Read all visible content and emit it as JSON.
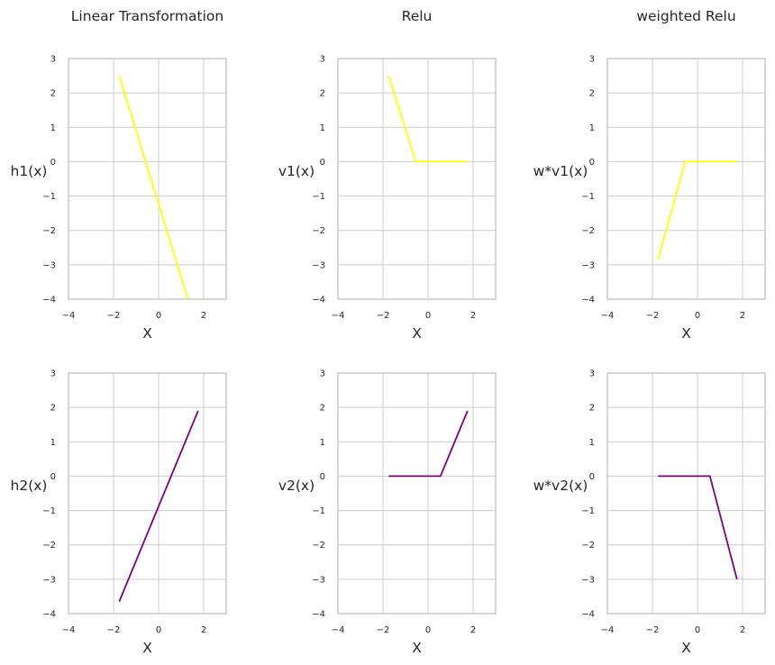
{
  "chart_data": [
    {
      "type": "line",
      "title": "Linear Transformation",
      "xlabel": "X",
      "ylabel": "h1(x)",
      "xlim": [
        -4,
        3
      ],
      "ylim": [
        -4,
        3
      ],
      "xticks": [
        "−4",
        "−2",
        "0",
        "2"
      ],
      "yticks": [
        "−4",
        "−3",
        "−2",
        "−1",
        "0",
        "1",
        "2",
        "3"
      ],
      "grid": true,
      "series": [
        {
          "color": "#ffff00",
          "x": [
            -1.75,
            1.3
          ],
          "y": [
            2.5,
            -4.0
          ]
        }
      ]
    },
    {
      "type": "line",
      "title": "Relu",
      "xlabel": "X",
      "ylabel": "v1(x)",
      "xlim": [
        -4,
        3
      ],
      "ylim": [
        -4,
        3
      ],
      "xticks": [
        "−4",
        "−2",
        "0",
        "2"
      ],
      "yticks": [
        "−4",
        "−3",
        "−2",
        "−1",
        "0",
        "1",
        "2",
        "3"
      ],
      "grid": true,
      "series": [
        {
          "color": "#ffff00",
          "x": [
            -1.75,
            -0.55,
            1.75
          ],
          "y": [
            2.5,
            0,
            0
          ]
        }
      ]
    },
    {
      "type": "line",
      "title": "weighted Relu",
      "xlabel": "X",
      "ylabel": "w*v1(x)",
      "xlim": [
        -4,
        3
      ],
      "ylim": [
        -4,
        3
      ],
      "xticks": [
        "−4",
        "−2",
        "0",
        "2"
      ],
      "yticks": [
        "−4",
        "−3",
        "−2",
        "−1",
        "0",
        "1",
        "2",
        "3"
      ],
      "grid": true,
      "series": [
        {
          "color": "#ffff00",
          "x": [
            -1.75,
            -0.55,
            1.75
          ],
          "y": [
            -2.85,
            0,
            0
          ]
        }
      ]
    },
    {
      "type": "line",
      "title": "",
      "xlabel": "X",
      "ylabel": "h2(x)",
      "xlim": [
        -4,
        3
      ],
      "ylim": [
        -4,
        3
      ],
      "xticks": [
        "−4",
        "−2",
        "0",
        "2"
      ],
      "yticks": [
        "−4",
        "−3",
        "−2",
        "−1",
        "0",
        "1",
        "2",
        "3"
      ],
      "grid": true,
      "series": [
        {
          "color": "#800080",
          "x": [
            -1.75,
            1.75
          ],
          "y": [
            -3.65,
            1.9
          ]
        }
      ]
    },
    {
      "type": "line",
      "title": "",
      "xlabel": "X",
      "ylabel": "v2(x)",
      "xlim": [
        -4,
        3
      ],
      "ylim": [
        -4,
        3
      ],
      "xticks": [
        "−4",
        "−2",
        "0",
        "2"
      ],
      "yticks": [
        "−4",
        "−3",
        "−2",
        "−1",
        "0",
        "1",
        "2",
        "3"
      ],
      "grid": true,
      "series": [
        {
          "color": "#800080",
          "x": [
            -1.75,
            0.55,
            1.75
          ],
          "y": [
            0,
            0,
            1.9
          ]
        }
      ]
    },
    {
      "type": "line",
      "title": "",
      "xlabel": "X",
      "ylabel": "w*v2(x)",
      "xlim": [
        -4,
        3
      ],
      "ylim": [
        -4,
        3
      ],
      "xticks": [
        "−4",
        "−2",
        "0",
        "2"
      ],
      "yticks": [
        "−4",
        "−3",
        "−2",
        "−1",
        "0",
        "1",
        "2",
        "3"
      ],
      "grid": true,
      "series": [
        {
          "color": "#800080",
          "x": [
            -1.75,
            0.55,
            1.75
          ],
          "y": [
            0,
            0,
            -3.0
          ]
        }
      ]
    }
  ]
}
